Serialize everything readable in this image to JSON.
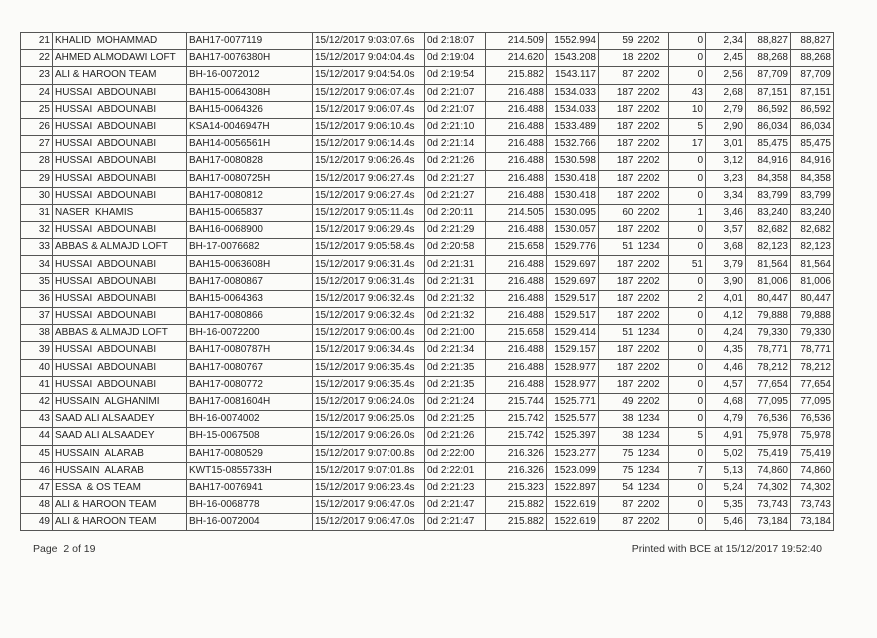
{
  "table": {
    "rows": [
      [
        "21",
        "KHALID  MOHAMMAD",
        "BAH17-0077119",
        "15/12/2017 9:03:07.6s",
        "0d 2:18:07",
        "214.509",
        "1552.994",
        "59",
        "2202",
        "0",
        "2,34",
        "88,827",
        "88,827"
      ],
      [
        "22",
        "AHMED ALMODAWI LOFT",
        "BAH17-0076380H",
        "15/12/2017 9:04:04.4s",
        "0d 2:19:04",
        "214.620",
        "1543.208",
        "18",
        "2202",
        "0",
        "2,45",
        "88,268",
        "88,268"
      ],
      [
        "23",
        "ALI & HAROON TEAM",
        "BH-16-0072012",
        "15/12/2017 9:04:54.0s",
        "0d 2:19:54",
        "215.882",
        "1543.117",
        "87",
        "2202",
        "0",
        "2,56",
        "87,709",
        "87,709"
      ],
      [
        "24",
        "HUSSAI  ABDOUNABI",
        "BAH15-0064308H",
        "15/12/2017 9:06:07.4s",
        "0d 2:21:07",
        "216.488",
        "1534.033",
        "187",
        "2202",
        "43",
        "2,68",
        "87,151",
        "87,151"
      ],
      [
        "25",
        "HUSSAI  ABDOUNABI",
        "BAH15-0064326",
        "15/12/2017 9:06:07.4s",
        "0d 2:21:07",
        "216.488",
        "1534.033",
        "187",
        "2202",
        "10",
        "2,79",
        "86,592",
        "86,592"
      ],
      [
        "26",
        "HUSSAI  ABDOUNABI",
        "KSA14-0046947H",
        "15/12/2017 9:06:10.4s",
        "0d 2:21:10",
        "216.488",
        "1533.489",
        "187",
        "2202",
        "5",
        "2,90",
        "86,034",
        "86,034"
      ],
      [
        "27",
        "HUSSAI  ABDOUNABI",
        "BAH14-0056561H",
        "15/12/2017 9:06:14.4s",
        "0d 2:21:14",
        "216.488",
        "1532.766",
        "187",
        "2202",
        "17",
        "3,01",
        "85,475",
        "85,475"
      ],
      [
        "28",
        "HUSSAI  ABDOUNABI",
        "BAH17-0080828",
        "15/12/2017 9:06:26.4s",
        "0d 2:21:26",
        "216.488",
        "1530.598",
        "187",
        "2202",
        "0",
        "3,12",
        "84,916",
        "84,916"
      ],
      [
        "29",
        "HUSSAI  ABDOUNABI",
        "BAH17-0080725H",
        "15/12/2017 9:06:27.4s",
        "0d 2:21:27",
        "216.488",
        "1530.418",
        "187",
        "2202",
        "0",
        "3,23",
        "84,358",
        "84,358"
      ],
      [
        "30",
        "HUSSAI  ABDOUNABI",
        "BAH17-0080812",
        "15/12/2017 9:06:27.4s",
        "0d 2:21:27",
        "216.488",
        "1530.418",
        "187",
        "2202",
        "0",
        "3,34",
        "83,799",
        "83,799"
      ],
      [
        "31",
        "NASER  KHAMIS",
        "BAH15-0065837",
        "15/12/2017 9:05:11.4s",
        "0d 2:20:11",
        "214.505",
        "1530.095",
        "60",
        "2202",
        "1",
        "3,46",
        "83,240",
        "83,240"
      ],
      [
        "32",
        "HUSSAI  ABDOUNABI",
        "BAH16-0068900",
        "15/12/2017 9:06:29.4s",
        "0d 2:21:29",
        "216.488",
        "1530.057",
        "187",
        "2202",
        "0",
        "3,57",
        "82,682",
        "82,682"
      ],
      [
        "33",
        "ABBAS & ALMAJD LOFT",
        "BH-17-0076682",
        "15/12/2017 9:05:58.4s",
        "0d 2:20:58",
        "215.658",
        "1529.776",
        "51",
        "1234",
        "0",
        "3,68",
        "82,123",
        "82,123"
      ],
      [
        "34",
        "HUSSAI  ABDOUNABI",
        "BAH15-0063608H",
        "15/12/2017 9:06:31.4s",
        "0d 2:21:31",
        "216.488",
        "1529.697",
        "187",
        "2202",
        "51",
        "3,79",
        "81,564",
        "81,564"
      ],
      [
        "35",
        "HUSSAI  ABDOUNABI",
        "BAH17-0080867",
        "15/12/2017 9:06:31.4s",
        "0d 2:21:31",
        "216.488",
        "1529.697",
        "187",
        "2202",
        "0",
        "3,90",
        "81,006",
        "81,006"
      ],
      [
        "36",
        "HUSSAI  ABDOUNABI",
        "BAH15-0064363",
        "15/12/2017 9:06:32.4s",
        "0d 2:21:32",
        "216.488",
        "1529.517",
        "187",
        "2202",
        "2",
        "4,01",
        "80,447",
        "80,447"
      ],
      [
        "37",
        "HUSSAI  ABDOUNABI",
        "BAH17-0080866",
        "15/12/2017 9:06:32.4s",
        "0d 2:21:32",
        "216.488",
        "1529.517",
        "187",
        "2202",
        "0",
        "4,12",
        "79,888",
        "79,888"
      ],
      [
        "38",
        "ABBAS & ALMAJD LOFT",
        "BH-16-0072200",
        "15/12/2017 9:06:00.4s",
        "0d 2:21:00",
        "215.658",
        "1529.414",
        "51",
        "1234",
        "0",
        "4,24",
        "79,330",
        "79,330"
      ],
      [
        "39",
        "HUSSAI  ABDOUNABI",
        "BAH17-0080787H",
        "15/12/2017 9:06:34.4s",
        "0d 2:21:34",
        "216.488",
        "1529.157",
        "187",
        "2202",
        "0",
        "4,35",
        "78,771",
        "78,771"
      ],
      [
        "40",
        "HUSSAI  ABDOUNABI",
        "BAH17-0080767",
        "15/12/2017 9:06:35.4s",
        "0d 2:21:35",
        "216.488",
        "1528.977",
        "187",
        "2202",
        "0",
        "4,46",
        "78,212",
        "78,212"
      ],
      [
        "41",
        "HUSSAI  ABDOUNABI",
        "BAH17-0080772",
        "15/12/2017 9:06:35.4s",
        "0d 2:21:35",
        "216.488",
        "1528.977",
        "187",
        "2202",
        "0",
        "4,57",
        "77,654",
        "77,654"
      ],
      [
        "42",
        "HUSSAIN  ALGHANIMI",
        "BAH17-0081604H",
        "15/12/2017 9:06:24.0s",
        "0d 2:21:24",
        "215.744",
        "1525.771",
        "49",
        "2202",
        "0",
        "4,68",
        "77,095",
        "77,095"
      ],
      [
        "43",
        "SAAD ALI ALSAADEY",
        "BH-16-0074002",
        "15/12/2017 9:06:25.0s",
        "0d 2:21:25",
        "215.742",
        "1525.577",
        "38",
        "1234",
        "0",
        "4,79",
        "76,536",
        "76,536"
      ],
      [
        "44",
        "SAAD ALI ALSAADEY",
        "BH-15-0067508",
        "15/12/2017 9:06:26.0s",
        "0d 2:21:26",
        "215.742",
        "1525.397",
        "38",
        "1234",
        "5",
        "4,91",
        "75,978",
        "75,978"
      ],
      [
        "45",
        "HUSSAIN  ALARAB",
        "BAH17-0080529",
        "15/12/2017 9:07:00.8s",
        "0d 2:22:00",
        "216.326",
        "1523.277",
        "75",
        "1234",
        "0",
        "5,02",
        "75,419",
        "75,419"
      ],
      [
        "46",
        "HUSSAIN  ALARAB",
        "KWT15-0855733H",
        "15/12/2017 9:07:01.8s",
        "0d 2:22:01",
        "216.326",
        "1523.099",
        "75",
        "1234",
        "7",
        "5,13",
        "74,860",
        "74,860"
      ],
      [
        "47",
        "ESSA  & OS TEAM",
        "BAH17-0076941",
        "15/12/2017 9:06:23.4s",
        "0d 2:21:23",
        "215.323",
        "1522.897",
        "54",
        "1234",
        "0",
        "5,24",
        "74,302",
        "74,302"
      ],
      [
        "48",
        "ALI & HAROON TEAM",
        "BH-16-0068778",
        "15/12/2017 9:06:47.0s",
        "0d 2:21:47",
        "215.882",
        "1522.619",
        "87",
        "2202",
        "0",
        "5,35",
        "73,743",
        "73,743"
      ],
      [
        "49",
        "ALI & HAROON TEAM",
        "BH-16-0072004",
        "15/12/2017 9:06:47.0s",
        "0d 2:21:47",
        "215.882",
        "1522.619",
        "87",
        "2202",
        "0",
        "5,46",
        "73,184",
        "73,184"
      ]
    ]
  },
  "footer": {
    "page": "Page  2 of 19",
    "printed": "Printed with BCE at 15/12/2017 19:52:40"
  }
}
